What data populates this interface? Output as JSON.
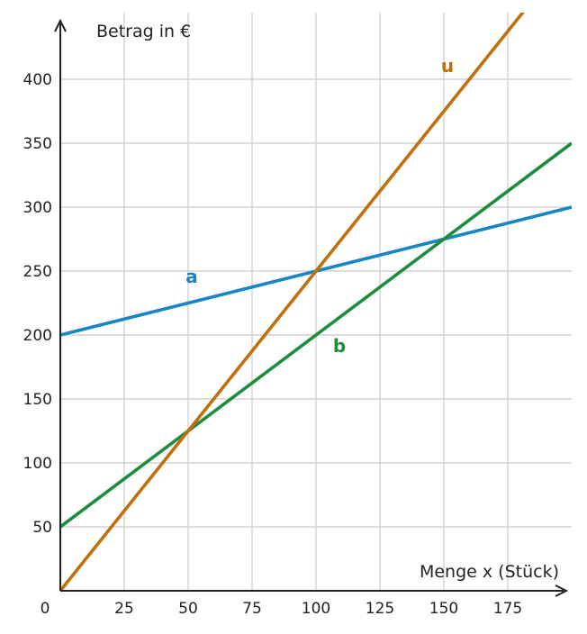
{
  "chart_data": {
    "type": "line",
    "xlabel": "Menge x (Stück)",
    "ylabel": "Betrag in €",
    "origin_label": "0",
    "xlim": [
      0,
      200
    ],
    "ylim": [
      0,
      450
    ],
    "x_ticks": [
      "25",
      "50",
      "75",
      "100",
      "125",
      "150",
      "175"
    ],
    "y_ticks": [
      "50",
      "100",
      "150",
      "200",
      "250",
      "300",
      "350",
      "400"
    ],
    "grid": true,
    "series": [
      {
        "name": "a",
        "color": "#1a86c0",
        "x": [
          0,
          200
        ],
        "y": [
          200,
          300
        ]
      },
      {
        "name": "b",
        "color": "#1f8c3d",
        "x": [
          0,
          200
        ],
        "y": [
          50,
          350
        ]
      },
      {
        "name": "u",
        "color": "#c0700a",
        "x": [
          0,
          200
        ],
        "y": [
          0,
          500
        ]
      }
    ]
  }
}
